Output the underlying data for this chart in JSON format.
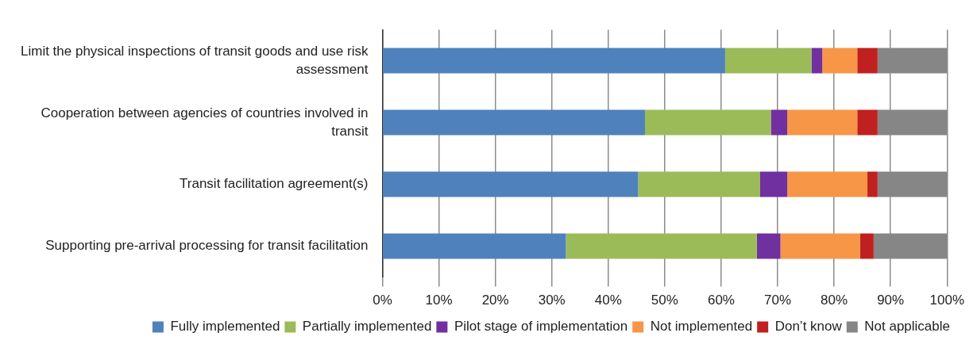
{
  "chart_data": {
    "type": "bar",
    "orientation": "horizontal",
    "stacked": true,
    "categories": [
      "Limit the physical inspections of transit goods and use risk assessment",
      "Cooperation between agencies of countries involved in transit",
      "Transit facilitation agreement(s)",
      "Supporting pre-arrival processing for transit facilitation"
    ],
    "series": [
      {
        "name": "Fully implemented",
        "color": "#4f81bd",
        "values": [
          60.7,
          46.5,
          45.3,
          32.5
        ]
      },
      {
        "name": "Partially implemented",
        "color": "#9bbb59",
        "values": [
          15.3,
          22.3,
          21.6,
          33.8
        ]
      },
      {
        "name": "Pilot stage of implementation",
        "color": "#7030a0",
        "values": [
          1.9,
          2.9,
          4.8,
          4.2
        ]
      },
      {
        "name": "Not implemented",
        "color": "#f79646",
        "values": [
          6.2,
          12.4,
          14.2,
          14.1
        ]
      },
      {
        "name": "Don’t know",
        "color": "#c0201f",
        "values": [
          3.6,
          3.6,
          1.8,
          2.4
        ]
      },
      {
        "name": "Not applicable",
        "color": "#868686",
        "values": [
          12.3,
          12.3,
          12.3,
          13.0
        ]
      }
    ],
    "xlim": [
      0,
      100
    ],
    "xticks": [
      {
        "value": 0,
        "label": "0%"
      },
      {
        "value": 10,
        "label": "10%"
      },
      {
        "value": 20,
        "label": "20%"
      },
      {
        "value": 30,
        "label": "30%"
      },
      {
        "value": 40,
        "label": "40%"
      },
      {
        "value": 50,
        "label": "50%"
      },
      {
        "value": 60,
        "label": "60%"
      },
      {
        "value": 70,
        "label": "70%"
      },
      {
        "value": 80,
        "label": "80%"
      },
      {
        "value": 90,
        "label": "90%"
      },
      {
        "value": 100,
        "label": "100%"
      }
    ],
    "grid": "x",
    "legend": "bottom"
  }
}
